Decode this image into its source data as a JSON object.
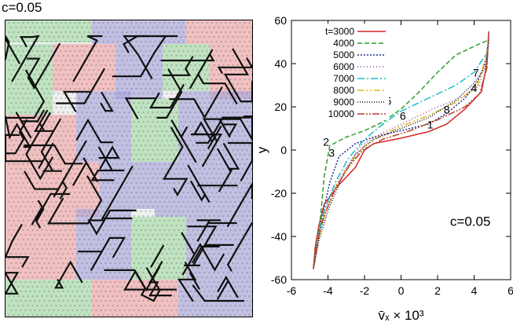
{
  "panel_label": "c=0.05",
  "snapshot": {
    "grain_colors": [
      "#f2a6a8",
      "#a9a6dc",
      "#a6dca6"
    ],
    "defect_color": "#101010"
  },
  "chart_data": {
    "type": "line",
    "xlabel_html": "v̄ₓ × 10³",
    "xlabel": "v̄x × 10³",
    "ylabel": "y",
    "xlim": [
      -6,
      6
    ],
    "ylim": [
      -60,
      60
    ],
    "xticks": [
      -6,
      -4,
      -2,
      0,
      2,
      4,
      6
    ],
    "yticks": [
      -60,
      -40,
      -20,
      0,
      20,
      40,
      60
    ],
    "annotation": "c=0.05",
    "legend_position": "top-left",
    "series": [
      {
        "name": "t=3000",
        "color": "#d62728",
        "dash": "",
        "label": "1",
        "label_at": [
          1.6,
          10
        ],
        "points": [
          [
            -4.8,
            -55
          ],
          [
            -4.7,
            -45
          ],
          [
            -4.5,
            -35
          ],
          [
            -4.2,
            -25
          ],
          [
            -3.5,
            -17
          ],
          [
            -2.5,
            -8
          ],
          [
            -2,
            0
          ],
          [
            -1.5,
            3
          ],
          [
            0,
            5.5
          ],
          [
            1.5,
            8.5
          ],
          [
            2.5,
            12
          ],
          [
            3.5,
            19
          ],
          [
            4.4,
            27
          ],
          [
            4.7,
            40
          ],
          [
            4.8,
            55
          ]
        ]
      },
      {
        "name": "4000",
        "color": "#2ca02c",
        "dash": "6,3",
        "label": "2",
        "label_at": [
          -4.1,
          2
        ],
        "points": [
          [
            -4.8,
            -55
          ],
          [
            -4.6,
            -45
          ],
          [
            -4.4,
            -30
          ],
          [
            -4.2,
            -12
          ],
          [
            -3.9,
            2
          ],
          [
            -3,
            6
          ],
          [
            -2,
            9
          ],
          [
            -1,
            13
          ],
          [
            0,
            19
          ],
          [
            1,
            27
          ],
          [
            2,
            36
          ],
          [
            3,
            44
          ],
          [
            4,
            48
          ],
          [
            4.8,
            51
          ]
        ]
      },
      {
        "name": "5000",
        "color": "#1f2f8c",
        "dash": "2,2",
        "label": "3",
        "label_at": [
          -3.8,
          -3
        ],
        "points": [
          [
            -4.8,
            -55
          ],
          [
            -4.6,
            -45
          ],
          [
            -4.3,
            -30
          ],
          [
            -3.9,
            -15
          ],
          [
            -3.4,
            -3
          ],
          [
            -2.5,
            3
          ],
          [
            -1.5,
            6
          ],
          [
            0,
            9
          ],
          [
            1.5,
            12
          ],
          [
            2.5,
            17
          ],
          [
            3.5,
            24
          ],
          [
            4.2,
            32
          ],
          [
            4.7,
            42
          ],
          [
            4.8,
            51
          ]
        ]
      },
      {
        "name": "6000",
        "color": "#9b3fb5",
        "dash": "1,3",
        "label": "4",
        "label_at": [
          4.0,
          27
        ],
        "points": [
          [
            -4.8,
            -55
          ],
          [
            -4.6,
            -42
          ],
          [
            -4.3,
            -30
          ],
          [
            -3.7,
            -18
          ],
          [
            -3,
            -8
          ],
          [
            -2.2,
            2
          ],
          [
            -1,
            8
          ],
          [
            0.5,
            14
          ],
          [
            2,
            20
          ],
          [
            3.5,
            25
          ],
          [
            4.3,
            30
          ],
          [
            4.8,
            50
          ]
        ]
      },
      {
        "name": "7000",
        "color": "#17becf",
        "dash": "9,3,2,3",
        "label": "5",
        "label_at": [
          -0.7,
          21
        ],
        "points": [
          [
            -4.8,
            -55
          ],
          [
            -4.6,
            -42
          ],
          [
            -4.2,
            -28
          ],
          [
            -3.6,
            -15
          ],
          [
            -2.9,
            -4
          ],
          [
            -2,
            5
          ],
          [
            -1,
            12
          ],
          [
            0,
            18
          ],
          [
            1.5,
            24
          ],
          [
            3,
            30
          ],
          [
            4,
            36
          ],
          [
            4.7,
            45
          ],
          [
            4.8,
            52
          ]
        ]
      },
      {
        "name": "8000",
        "color": "#e2b515",
        "dash": "8,3,2,3,2,3",
        "label": "6",
        "label_at": [
          0.1,
          14
        ],
        "points": [
          [
            -4.8,
            -55
          ],
          [
            -4.5,
            -40
          ],
          [
            -4.1,
            -28
          ],
          [
            -3.5,
            -16
          ],
          [
            -2.8,
            -6
          ],
          [
            -2,
            2
          ],
          [
            -1,
            7
          ],
          [
            0,
            11
          ],
          [
            1.5,
            16
          ],
          [
            3,
            22
          ],
          [
            4.2,
            30
          ],
          [
            4.8,
            48
          ]
        ]
      },
      {
        "name": "9000",
        "color": "#111111",
        "dash": "1,2",
        "label": "7",
        "label_at": [
          4.1,
          34
        ],
        "points": [
          [
            -4.8,
            -55
          ],
          [
            -4.5,
            -42
          ],
          [
            -4,
            -28
          ],
          [
            -3.3,
            -14
          ],
          [
            -2.5,
            -2
          ],
          [
            -1.5,
            5
          ],
          [
            0,
            10
          ],
          [
            1.5,
            15
          ],
          [
            3,
            23
          ],
          [
            4,
            31
          ],
          [
            4.6,
            38
          ],
          [
            4.8,
            50
          ]
        ]
      },
      {
        "name": "10000",
        "color": "#b5402a",
        "dash": "9,2,2,2,2,2",
        "label": "8",
        "label_at": [
          2.5,
          17
        ],
        "points": [
          [
            -4.8,
            -55
          ],
          [
            -4.6,
            -43
          ],
          [
            -4.2,
            -30
          ],
          [
            -3.6,
            -18
          ],
          [
            -2.9,
            -8
          ],
          [
            -2.1,
            0
          ],
          [
            -1,
            5
          ],
          [
            0.5,
            9
          ],
          [
            2,
            14
          ],
          [
            3.5,
            20
          ],
          [
            4.3,
            26
          ],
          [
            4.7,
            38
          ],
          [
            4.8,
            54
          ]
        ]
      }
    ]
  }
}
